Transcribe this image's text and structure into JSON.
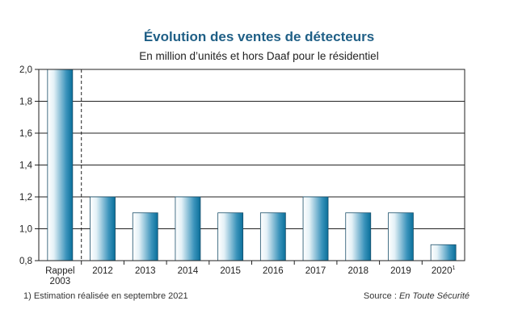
{
  "chart_data": {
    "type": "bar",
    "title": "Évolution des ventes de détecteurs",
    "subtitle": "En million d’unités et hors Daaf pour le résidentiel",
    "categories": [
      "Rappel 2003",
      "2012",
      "2013",
      "2014",
      "2015",
      "2016",
      "2017",
      "2018",
      "2019",
      "2020"
    ],
    "category_lines": [
      [
        "Rappel",
        "2003"
      ],
      [
        "2012"
      ],
      [
        "2013"
      ],
      [
        "2014"
      ],
      [
        "2015"
      ],
      [
        "2016"
      ],
      [
        "2017"
      ],
      [
        "2018"
      ],
      [
        "2019"
      ],
      [
        "2020"
      ]
    ],
    "category_superscript": [
      "",
      "",
      "",
      "",
      "",
      "",
      "",
      "",
      "",
      "1"
    ],
    "values": [
      2.0,
      1.2,
      1.1,
      1.2,
      1.1,
      1.1,
      1.2,
      1.1,
      1.1,
      0.9
    ],
    "ylim": [
      0.8,
      2.0
    ],
    "yticks": [
      0.8,
      1.0,
      1.2,
      1.4,
      1.6,
      1.8,
      2.0
    ],
    "ytick_labels": [
      "0,8",
      "1,0",
      "1,2",
      "1,4",
      "1,6",
      "1,8",
      "2,0"
    ],
    "xlabel": "",
    "ylabel": "",
    "grid": true,
    "colors": {
      "bar_dark": "#0a6f9a",
      "bar_light": "#ffffff",
      "title": "#1f5f86"
    }
  },
  "footnote": "1) Estimation réalisée en septembre 2021",
  "source": {
    "prefix": "Source : ",
    "name": "En Toute Sécurité"
  }
}
